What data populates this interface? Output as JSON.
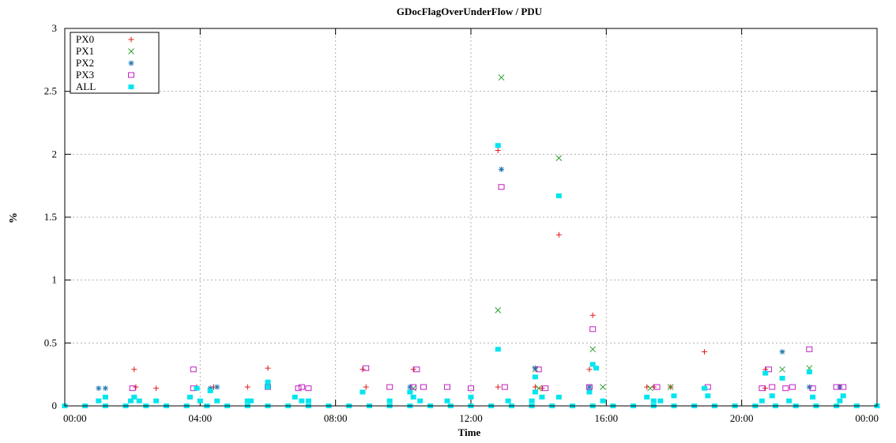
{
  "chart_data": {
    "type": "scatter",
    "title": "GDocFlagOverUnderFlow / PDU",
    "xlabel": "Time",
    "ylabel": "%",
    "xlim": [
      0,
      24
    ],
    "ylim": [
      0,
      3
    ],
    "x_ticks": [
      {
        "value": 0,
        "label": "00:00"
      },
      {
        "value": 4,
        "label": "04:00"
      },
      {
        "value": 8,
        "label": "08:00"
      },
      {
        "value": 12,
        "label": "12:00"
      },
      {
        "value": 16,
        "label": "16:00"
      },
      {
        "value": 20,
        "label": "20:00"
      },
      {
        "value": 24,
        "label": "00:00"
      }
    ],
    "y_ticks": [
      {
        "value": 0,
        "label": "0"
      },
      {
        "value": 0.5,
        "label": "0.5"
      },
      {
        "value": 1,
        "label": "1"
      },
      {
        "value": 1.5,
        "label": "1.5"
      },
      {
        "value": 2,
        "label": "2"
      },
      {
        "value": 2.5,
        "label": "2.5"
      },
      {
        "value": 3,
        "label": "3"
      }
    ],
    "grid": true,
    "legend_position": "top-left",
    "series": [
      {
        "name": "PX0",
        "marker": "plus",
        "color": "#e41a1c",
        "points": [
          [
            2.05,
            0.29
          ],
          [
            2.1,
            0.15
          ],
          [
            2.7,
            0.14
          ],
          [
            3.9,
            0.15
          ],
          [
            4.4,
            0.15
          ],
          [
            5.4,
            0.15
          ],
          [
            6.0,
            0.3
          ],
          [
            8.8,
            0.29
          ],
          [
            8.9,
            0.15
          ],
          [
            10.3,
            0.29
          ],
          [
            12.8,
            2.03
          ],
          [
            12.8,
            0.15
          ],
          [
            13.9,
            0.15
          ],
          [
            14.1,
            0.14
          ],
          [
            14.6,
            1.36
          ],
          [
            15.6,
            0.72
          ],
          [
            15.5,
            0.29
          ],
          [
            17.2,
            0.15
          ],
          [
            17.4,
            0.15
          ],
          [
            17.9,
            0.15
          ],
          [
            18.9,
            0.43
          ],
          [
            20.7,
            0.29
          ],
          [
            20.7,
            0.14
          ],
          [
            22.9,
            0.15
          ]
        ]
      },
      {
        "name": "PX1",
        "marker": "cross",
        "color": "#2ca02c",
        "points": [
          [
            12.9,
            2.61
          ],
          [
            12.8,
            0.76
          ],
          [
            14.6,
            1.97
          ],
          [
            15.6,
            0.45
          ],
          [
            15.9,
            0.15
          ],
          [
            13.9,
            0.29
          ],
          [
            14.0,
            0.14
          ],
          [
            21.2,
            0.29
          ],
          [
            22.0,
            0.3
          ],
          [
            17.3,
            0.14
          ],
          [
            17.9,
            0.15
          ],
          [
            10.3,
            0.14
          ]
        ]
      },
      {
        "name": "PX2",
        "marker": "star",
        "color": "#1f77b4",
        "points": [
          [
            1.0,
            0.14
          ],
          [
            1.2,
            0.14
          ],
          [
            4.3,
            0.14
          ],
          [
            4.5,
            0.15
          ],
          [
            10.2,
            0.15
          ],
          [
            12.9,
            1.88
          ],
          [
            13.9,
            0.3
          ],
          [
            15.5,
            0.15
          ],
          [
            21.2,
            0.43
          ],
          [
            22.0,
            0.15
          ],
          [
            22.9,
            0.15
          ]
        ]
      },
      {
        "name": "PX3",
        "marker": "square-open",
        "color": "#c020c0",
        "points": [
          [
            2.0,
            0.14
          ],
          [
            3.8,
            0.29
          ],
          [
            3.8,
            0.14
          ],
          [
            6.0,
            0.15
          ],
          [
            6.9,
            0.14
          ],
          [
            7.0,
            0.15
          ],
          [
            7.2,
            0.14
          ],
          [
            8.9,
            0.3
          ],
          [
            9.6,
            0.15
          ],
          [
            10.3,
            0.15
          ],
          [
            10.4,
            0.29
          ],
          [
            10.6,
            0.15
          ],
          [
            11.3,
            0.15
          ],
          [
            12.0,
            0.14
          ],
          [
            12.9,
            1.74
          ],
          [
            13.0,
            0.15
          ],
          [
            14.0,
            0.29
          ],
          [
            14.2,
            0.14
          ],
          [
            15.6,
            0.61
          ],
          [
            15.5,
            0.15
          ],
          [
            17.5,
            0.15
          ],
          [
            19.0,
            0.15
          ],
          [
            20.6,
            0.14
          ],
          [
            20.8,
            0.29
          ],
          [
            20.9,
            0.15
          ],
          [
            21.3,
            0.14
          ],
          [
            21.5,
            0.15
          ],
          [
            22.0,
            0.45
          ],
          [
            22.1,
            0.14
          ],
          [
            22.8,
            0.15
          ],
          [
            23.0,
            0.15
          ]
        ]
      },
      {
        "name": "ALL",
        "marker": "square-filled",
        "color": "#00e5ee",
        "points": [
          [
            0.0,
            0.0
          ],
          [
            0.6,
            0.0
          ],
          [
            1.2,
            0.0
          ],
          [
            1.8,
            0.0
          ],
          [
            2.4,
            0.0
          ],
          [
            3.0,
            0.0
          ],
          [
            3.6,
            0.0
          ],
          [
            4.2,
            0.0
          ],
          [
            4.8,
            0.0
          ],
          [
            5.4,
            0.0
          ],
          [
            6.0,
            0.0
          ],
          [
            6.6,
            0.0
          ],
          [
            7.2,
            0.0
          ],
          [
            7.8,
            0.0
          ],
          [
            8.4,
            0.0
          ],
          [
            9.0,
            0.0
          ],
          [
            9.6,
            0.0
          ],
          [
            10.2,
            0.0
          ],
          [
            10.8,
            0.0
          ],
          [
            11.4,
            0.0
          ],
          [
            12.0,
            0.0
          ],
          [
            12.6,
            0.0
          ],
          [
            13.2,
            0.0
          ],
          [
            13.8,
            0.0
          ],
          [
            14.4,
            0.0
          ],
          [
            15.0,
            0.0
          ],
          [
            15.6,
            0.0
          ],
          [
            16.2,
            0.0
          ],
          [
            16.8,
            0.0
          ],
          [
            17.4,
            0.0
          ],
          [
            18.0,
            0.0
          ],
          [
            18.6,
            0.0
          ],
          [
            19.2,
            0.0
          ],
          [
            19.8,
            0.0
          ],
          [
            20.4,
            0.0
          ],
          [
            21.0,
            0.0
          ],
          [
            21.6,
            0.0
          ],
          [
            22.2,
            0.0
          ],
          [
            22.8,
            0.0
          ],
          [
            23.4,
            0.0
          ],
          [
            24.0,
            0.0
          ],
          [
            1.0,
            0.04
          ],
          [
            1.2,
            0.07
          ],
          [
            1.95,
            0.04
          ],
          [
            2.05,
            0.07
          ],
          [
            2.2,
            0.04
          ],
          [
            2.7,
            0.04
          ],
          [
            3.7,
            0.07
          ],
          [
            3.9,
            0.14
          ],
          [
            4.0,
            0.04
          ],
          [
            4.3,
            0.12
          ],
          [
            4.5,
            0.04
          ],
          [
            5.4,
            0.04
          ],
          [
            5.5,
            0.04
          ],
          [
            6.0,
            0.19
          ],
          [
            6.0,
            0.15
          ],
          [
            6.8,
            0.07
          ],
          [
            7.0,
            0.04
          ],
          [
            7.2,
            0.04
          ],
          [
            8.8,
            0.11
          ],
          [
            9.6,
            0.04
          ],
          [
            10.2,
            0.11
          ],
          [
            10.3,
            0.07
          ],
          [
            10.5,
            0.04
          ],
          [
            11.3,
            0.04
          ],
          [
            12.0,
            0.07
          ],
          [
            12.8,
            2.07
          ],
          [
            12.8,
            0.45
          ],
          [
            13.1,
            0.04
          ],
          [
            13.9,
            0.23
          ],
          [
            13.9,
            0.11
          ],
          [
            13.8,
            0.04
          ],
          [
            14.1,
            0.07
          ],
          [
            14.6,
            1.67
          ],
          [
            14.6,
            0.07
          ],
          [
            15.5,
            0.11
          ],
          [
            15.6,
            0.33
          ],
          [
            15.7,
            0.3
          ],
          [
            15.9,
            0.04
          ],
          [
            17.2,
            0.07
          ],
          [
            17.4,
            0.04
          ],
          [
            17.6,
            0.04
          ],
          [
            18.0,
            0.08
          ],
          [
            18.9,
            0.14
          ],
          [
            19.0,
            0.08
          ],
          [
            20.6,
            0.04
          ],
          [
            20.7,
            0.26
          ],
          [
            20.9,
            0.08
          ],
          [
            21.2,
            0.22
          ],
          [
            21.4,
            0.04
          ],
          [
            22.0,
            0.27
          ],
          [
            22.1,
            0.07
          ],
          [
            22.9,
            0.04
          ],
          [
            23.0,
            0.08
          ]
        ]
      }
    ]
  }
}
